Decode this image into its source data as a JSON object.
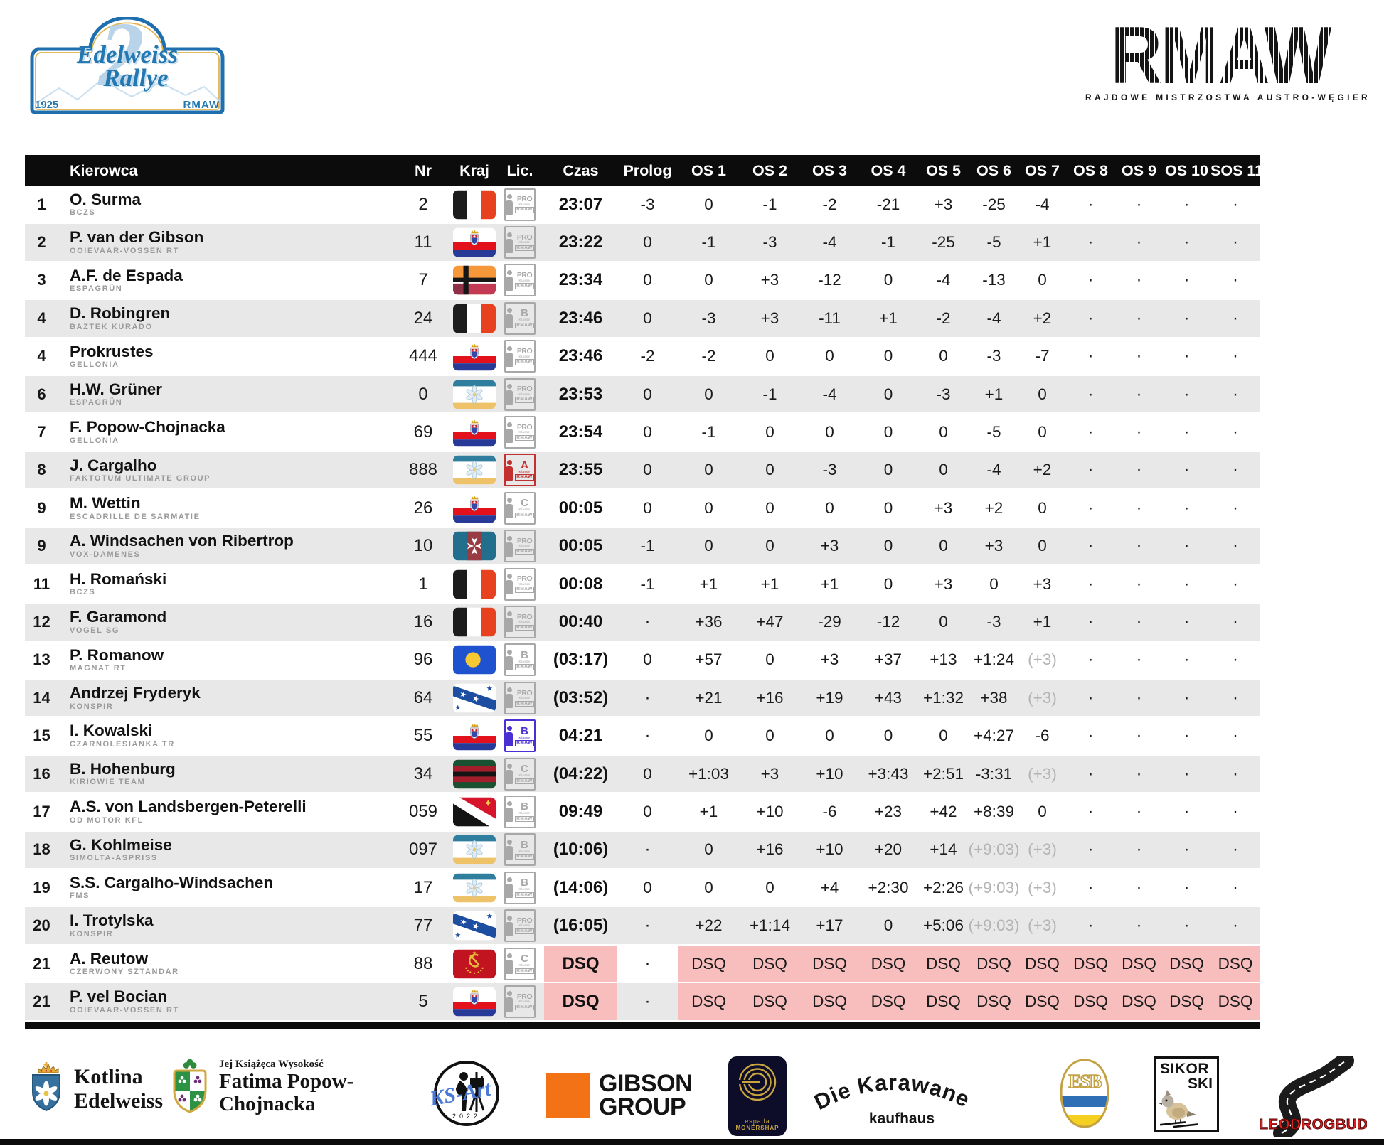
{
  "plate": {
    "edition": "2",
    "title1": "Edelweiss",
    "title2": "Rallye",
    "year": "1925",
    "org": "RMAW"
  },
  "rmaw": {
    "letters": "RMAW",
    "subtitle": "RAJDOWE MISTRZOSTWA AUSTRO-WĘGIER"
  },
  "colors": {
    "accent_blue": "#2478b2",
    "row_stripe": "#e8e8e8",
    "dsq_pink": "#f8bdbd",
    "header_black": "#0c0c0c",
    "gray_value": "#b4b4b4"
  },
  "table": {
    "columns": [
      "Kierowca",
      "Nr",
      "Kraj",
      "Lic.",
      "Czas",
      "Prolog",
      "OS 1",
      "OS 2",
      "OS 3",
      "OS 4",
      "OS 5",
      "OS 6",
      "OS 7",
      "OS 8",
      "OS 9",
      "OS 10",
      "SOS 11"
    ],
    "rows": [
      {
        "pos": "1",
        "driver": "O. Surma",
        "team": "BCZS",
        "nr": "2",
        "flag": "bwr",
        "lic": "PRO",
        "licv": "gray",
        "czas": "23:07",
        "cells": [
          "-3",
          "0",
          "-1",
          "-2",
          "-21",
          "+3",
          "-25",
          "-4",
          "·",
          "·",
          "·",
          "·"
        ]
      },
      {
        "pos": "2",
        "driver": "P. van der Gibson",
        "team": "OOIEVAAR-VOSSEN RT",
        "nr": "11",
        "flag": "crest",
        "lic": "PRO",
        "licv": "gray",
        "czas": "23:22",
        "cells": [
          "0",
          "-1",
          "-3",
          "-4",
          "-1",
          "-25",
          "-5",
          "+1",
          "·",
          "·",
          "·",
          "·"
        ]
      },
      {
        "pos": "3",
        "driver": "A.F. de Espada",
        "team": "ESPAGRÜN",
        "nr": "7",
        "flag": "cross",
        "lic": "PRO",
        "licv": "gray",
        "czas": "23:34",
        "cells": [
          "0",
          "0",
          "+3",
          "-12",
          "0",
          "-4",
          "-13",
          "0",
          "·",
          "·",
          "·",
          "·"
        ]
      },
      {
        "pos": "4",
        "driver": "D. Robingren",
        "team": "BAZTEK KURADO",
        "nr": "24",
        "flag": "bwr",
        "lic": "B",
        "licv": "gray",
        "czas": "23:46",
        "cells": [
          "0",
          "-3",
          "+3",
          "-11",
          "+1",
          "-2",
          "-4",
          "+2",
          "·",
          "·",
          "·",
          "·"
        ]
      },
      {
        "pos": "4",
        "driver": "Prokrustes",
        "team": "GELLONIA",
        "nr": "444",
        "flag": "crest",
        "lic": "PRO",
        "licv": "gray",
        "czas": "23:46",
        "cells": [
          "-2",
          "-2",
          "0",
          "0",
          "0",
          "0",
          "-3",
          "-7",
          "·",
          "·",
          "·",
          "·"
        ]
      },
      {
        "pos": "6",
        "driver": "H.W. Grüner",
        "team": "ESPAGRÜN",
        "nr": "0",
        "flag": "edelweiss",
        "lic": "PRO",
        "licv": "gray",
        "czas": "23:53",
        "cells": [
          "0",
          "0",
          "-1",
          "-4",
          "0",
          "-3",
          "+1",
          "0",
          "·",
          "·",
          "·",
          "·"
        ]
      },
      {
        "pos": "7",
        "driver": "F. Popow-Chojnacka",
        "team": "GELLONIA",
        "nr": "69",
        "flag": "crest",
        "lic": "PRO",
        "licv": "gray",
        "czas": "23:54",
        "cells": [
          "0",
          "-1",
          "0",
          "0",
          "0",
          "0",
          "-5",
          "0",
          "·",
          "·",
          "·",
          "·"
        ]
      },
      {
        "pos": "8",
        "driver": "J. Cargalho",
        "team": "FAKTOTUM ULTIMATE GROUP",
        "nr": "888",
        "flag": "edelweiss",
        "lic": "A",
        "licv": "red",
        "czas": "23:55",
        "cells": [
          "0",
          "0",
          "0",
          "-3",
          "0",
          "0",
          "-4",
          "+2",
          "·",
          "·",
          "·",
          "·"
        ]
      },
      {
        "pos": "9",
        "driver": "M. Wettin",
        "team": "ESCADRILLE DE SARMATIE",
        "nr": "26",
        "flag": "crest",
        "lic": "C",
        "licv": "gray",
        "czas": "00:05",
        "cells": [
          "0",
          "0",
          "0",
          "0",
          "0",
          "+3",
          "+2",
          "0",
          "·",
          "·",
          "·",
          "·"
        ]
      },
      {
        "pos": "9",
        "driver": "A. Windsachen von Ribertrop",
        "team": "VOX-DAMENES",
        "nr": "10",
        "flag": "maltese",
        "lic": "PRO",
        "licv": "gray",
        "czas": "00:05",
        "cells": [
          "-1",
          "0",
          "0",
          "+3",
          "0",
          "0",
          "+3",
          "0",
          "·",
          "·",
          "·",
          "·"
        ]
      },
      {
        "pos": "11",
        "driver": "H. Romański",
        "team": "BCZS",
        "nr": "1",
        "flag": "bwr",
        "lic": "PRO",
        "licv": "gray",
        "czas": "00:08",
        "cells": [
          "-1",
          "+1",
          "+1",
          "+1",
          "0",
          "+3",
          "0",
          "+3",
          "·",
          "·",
          "·",
          "·"
        ]
      },
      {
        "pos": "12",
        "driver": "F. Garamond",
        "team": "VOGEL SG",
        "nr": "16",
        "flag": "bwr",
        "lic": "PRO",
        "licv": "gray",
        "czas": "00:40",
        "cells": [
          "·",
          "+36",
          "+47",
          "-29",
          "-12",
          "0",
          "-3",
          "+1",
          "·",
          "·",
          "·",
          "·"
        ]
      },
      {
        "pos": "13",
        "driver": "P. Romanow",
        "team": "MAGNAT RT",
        "nr": "96",
        "flag": "palau",
        "lic": "B",
        "licv": "gray",
        "czas": "(03:17)",
        "cells": [
          "0",
          "+57",
          "0",
          "+3",
          "+37",
          "+13",
          "+1:24",
          "(+3)",
          "·",
          "·",
          "·",
          "·"
        ]
      },
      {
        "pos": "14",
        "driver": "Andrzej Fryderyk",
        "team": "KONSPIR",
        "nr": "64",
        "flag": "konspir",
        "lic": "PRO",
        "licv": "gray",
        "czas": "(03:52)",
        "cells": [
          "·",
          "+21",
          "+16",
          "+19",
          "+43",
          "+1:32",
          "+38",
          "(+3)",
          "·",
          "·",
          "·",
          "·"
        ]
      },
      {
        "pos": "15",
        "driver": "I. Kowalski",
        "team": "CZARNOLESIANKA TR",
        "nr": "55",
        "flag": "crest",
        "lic": "B",
        "licv": "purple",
        "czas": "04:21",
        "cells": [
          "·",
          "0",
          "0",
          "0",
          "0",
          "0",
          "+4:27",
          "-6",
          "·",
          "·",
          "·",
          "·"
        ]
      },
      {
        "pos": "16",
        "driver": "B. Hohenburg",
        "team": "KIRIOWIE TEAM",
        "nr": "34",
        "flag": "kiriowie",
        "lic": "C",
        "licv": "gray",
        "czas": "(04:22)",
        "cells": [
          "0",
          "+1:03",
          "+3",
          "+10",
          "+3:43",
          "+2:51",
          "-3:31",
          "(+3)",
          "·",
          "·",
          "·",
          "·"
        ]
      },
      {
        "pos": "17",
        "driver": "A.S. von Landsbergen-Peterelli",
        "team": "OD MOTOR KFL",
        "nr": "059",
        "flag": "odmotor",
        "lic": "B",
        "licv": "gray",
        "czas": "09:49",
        "cells": [
          "0",
          "+1",
          "+10",
          "-6",
          "+23",
          "+42",
          "+8:39",
          "0",
          "·",
          "·",
          "·",
          "·"
        ]
      },
      {
        "pos": "18",
        "driver": "G. Kohlmeise",
        "team": "SIMOLTA-ASPRISS",
        "nr": "097",
        "flag": "edelweiss",
        "lic": "B",
        "licv": "gray",
        "czas": "(10:06)",
        "cells": [
          "·",
          "0",
          "+16",
          "+10",
          "+20",
          "+14",
          "(+9:03)",
          "(+3)",
          "·",
          "·",
          "·",
          "·"
        ]
      },
      {
        "pos": "19",
        "driver": "S.S. Cargalho-Windsachen",
        "team": "FMS",
        "nr": "17",
        "flag": "edelweiss",
        "lic": "B",
        "licv": "gray",
        "czas": "(14:06)",
        "cells": [
          "0",
          "0",
          "0",
          "+4",
          "+2:30",
          "+2:26",
          "(+9:03)",
          "(+3)",
          "·",
          "·",
          "·",
          "·"
        ]
      },
      {
        "pos": "20",
        "driver": "I. Trotylska",
        "team": "KONSPIR",
        "nr": "77",
        "flag": "konspir",
        "lic": "PRO",
        "licv": "gray",
        "czas": "(16:05)",
        "cells": [
          "·",
          "+22",
          "+1:14",
          "+17",
          "0",
          "+5:06",
          "(+9:03)",
          "(+3)",
          "·",
          "·",
          "·",
          "·"
        ]
      },
      {
        "pos": "21",
        "driver": "A. Reutow",
        "team": "CZERWONY SZTANDAR",
        "nr": "88",
        "flag": "soviet",
        "lic": "C",
        "licv": "gray",
        "czas": "DSQ",
        "cells": [
          "·",
          "DSQ",
          "DSQ",
          "DSQ",
          "DSQ",
          "DSQ",
          "DSQ",
          "DSQ",
          "DSQ",
          "DSQ",
          "DSQ",
          "DSQ"
        ]
      },
      {
        "pos": "21",
        "driver": "P. vel Bocian",
        "team": "OOIEVAAR-VOSSEN RT",
        "nr": "5",
        "flag": "crest",
        "lic": "PRO",
        "licv": "gray",
        "czas": "DSQ",
        "cells": [
          "·",
          "DSQ",
          "DSQ",
          "DSQ",
          "DSQ",
          "DSQ",
          "DSQ",
          "DSQ",
          "DSQ",
          "DSQ",
          "DSQ",
          "DSQ"
        ]
      }
    ]
  },
  "sponsors": {
    "kotlina": {
      "line1": "Kotlina",
      "line2": "Edelweiss"
    },
    "fatima": {
      "pre": "Jej Książęca Wysokość",
      "line1": "Fatima Popow-",
      "line2": "Chojnacka"
    },
    "ksart": {
      "label": "KS-Art",
      "year": "2022"
    },
    "gibson": {
      "line1": "GIBSON",
      "line2": "GROUP"
    },
    "espada": {
      "line1": "espada",
      "line2": "monërshap"
    },
    "karawane": {
      "line1": "Die Karawane",
      "line2": "kaufhaus"
    },
    "esb": {
      "label": "ESB"
    },
    "sikorski": {
      "line1": "SIKOR",
      "line2": "SKI"
    },
    "leodrogbud": {
      "label": "LEODROGBUD"
    }
  }
}
